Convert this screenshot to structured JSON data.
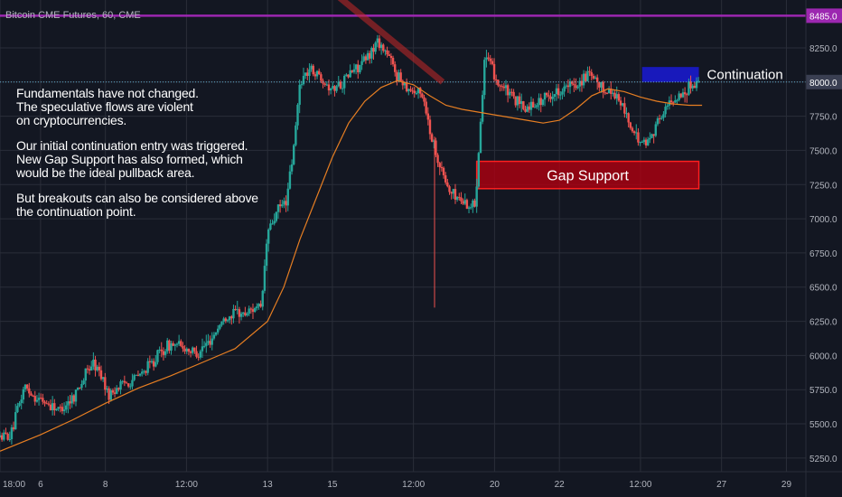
{
  "header": {
    "symbol_title": "Bitcoin CME Futures, 60, CME"
  },
  "commentary": {
    "p1_line1": "Fundamentals have not changed.",
    "p1_line2": "The speculative flows are violent",
    "p1_line3": "on cryptocurrencies.",
    "p2_line1": "Our initial continuation entry was triggered.",
    "p2_line2": "New Gap Support has also formed, which",
    "p2_line3": "would be the ideal pullback area.",
    "p3_line1": "But breakouts can also be considered above",
    "p3_line2": "the continuation point."
  },
  "colors": {
    "background": "#131722",
    "grid": "#2a2e39",
    "candle_up": "#26a69a",
    "candle_down": "#ef5350",
    "moving_average": "#e67e22",
    "resistance_line": "#9c27b0",
    "dotted_level": "#5fa8c8",
    "gap_zone": "#b00010",
    "continuation_zone": "#1a1acc",
    "trend_line": "#c62828"
  },
  "chart_data": {
    "type": "candlestick",
    "symbol": "Bitcoin CME Futures",
    "interval": "60",
    "exchange": "CME",
    "price_axis": {
      "ticks": [
        5250,
        5500,
        5750,
        6000,
        6250,
        6500,
        6750,
        7000,
        7250,
        7500,
        7750,
        8000,
        8250
      ],
      "range": [
        5150,
        8600
      ]
    },
    "time_axis": {
      "range_days": [
        4.75,
        29.6
      ],
      "ticks": [
        {
          "t": 4.75,
          "label": "18:00"
        },
        {
          "t": 6,
          "label": "6"
        },
        {
          "t": 8,
          "label": "8"
        },
        {
          "t": 10.5,
          "label": "12:00"
        },
        {
          "t": 13,
          "label": "13"
        },
        {
          "t": 15,
          "label": "15"
        },
        {
          "t": 17.5,
          "label": "12:00"
        },
        {
          "t": 20,
          "label": "20"
        },
        {
          "t": 22,
          "label": "22"
        },
        {
          "t": 24.5,
          "label": "12:00"
        },
        {
          "t": 27,
          "label": "27"
        },
        {
          "t": 29,
          "label": "29"
        }
      ]
    },
    "price_path": [
      [
        4.75,
        5400
      ],
      [
        5.1,
        5420
      ],
      [
        5.5,
        5780
      ],
      [
        5.8,
        5700
      ],
      [
        6.2,
        5650
      ],
      [
        6.6,
        5600
      ],
      [
        7.0,
        5700
      ],
      [
        7.3,
        5820
      ],
      [
        7.6,
        5950
      ],
      [
        7.9,
        5850
      ],
      [
        8.1,
        5700
      ],
      [
        8.4,
        5780
      ],
      [
        8.8,
        5820
      ],
      [
        9.2,
        5880
      ],
      [
        9.6,
        6000
      ],
      [
        10.0,
        6080
      ],
      [
        10.4,
        6060
      ],
      [
        10.8,
        6020
      ],
      [
        11.2,
        6100
      ],
      [
        11.6,
        6250
      ],
      [
        12.0,
        6320
      ],
      [
        12.3,
        6300
      ],
      [
        12.6,
        6360
      ],
      [
        12.8,
        6330
      ],
      [
        13.0,
        6900
      ],
      [
        13.3,
        7050
      ],
      [
        13.6,
        7150
      ],
      [
        13.8,
        7500
      ],
      [
        14.0,
        8000
      ],
      [
        14.3,
        8100
      ],
      [
        14.6,
        8050
      ],
      [
        15.0,
        7950
      ],
      [
        15.3,
        8000
      ],
      [
        15.6,
        8080
      ],
      [
        16.0,
        8150
      ],
      [
        16.4,
        8300
      ],
      [
        16.7,
        8200
      ],
      [
        17.0,
        8050
      ],
      [
        17.4,
        7950
      ],
      [
        17.8,
        7900
      ],
      [
        18.0,
        7650
      ],
      [
        18.3,
        7400
      ],
      [
        18.6,
        7200
      ],
      [
        18.9,
        7150
      ],
      [
        19.2,
        7100
      ],
      [
        19.4,
        7100
      ],
      [
        19.7,
        8200
      ],
      [
        20.1,
        8000
      ],
      [
        20.5,
        7900
      ],
      [
        20.9,
        7800
      ],
      [
        21.3,
        7850
      ],
      [
        21.7,
        7900
      ],
      [
        22.1,
        7950
      ],
      [
        22.5,
        7980
      ],
      [
        22.9,
        8050
      ],
      [
        23.3,
        7950
      ],
      [
        23.7,
        7920
      ],
      [
        24.0,
        7800
      ],
      [
        24.3,
        7600
      ],
      [
        24.7,
        7550
      ],
      [
        25.0,
        7700
      ],
      [
        25.4,
        7850
      ],
      [
        25.8,
        7920
      ],
      [
        26.1,
        7980
      ],
      [
        26.3,
        8020
      ]
    ],
    "moving_average": [
      [
        4.75,
        5300
      ],
      [
        6.0,
        5420
      ],
      [
        7.0,
        5530
      ],
      [
        8.0,
        5650
      ],
      [
        9.0,
        5760
      ],
      [
        10.0,
        5850
      ],
      [
        11.0,
        5950
      ],
      [
        12.0,
        6050
      ],
      [
        13.0,
        6250
      ],
      [
        13.5,
        6500
      ],
      [
        14.0,
        6850
      ],
      [
        14.5,
        7150
      ],
      [
        15.0,
        7450
      ],
      [
        15.5,
        7700
      ],
      [
        16.0,
        7860
      ],
      [
        16.5,
        7960
      ],
      [
        17.0,
        8010
      ],
      [
        17.5,
        7980
      ],
      [
        18.0,
        7900
      ],
      [
        18.5,
        7830
      ],
      [
        19.0,
        7800
      ],
      [
        20.0,
        7760
      ],
      [
        20.5,
        7740
      ],
      [
        21.0,
        7720
      ],
      [
        21.5,
        7700
      ],
      [
        22.0,
        7720
      ],
      [
        22.5,
        7800
      ],
      [
        23.0,
        7900
      ],
      [
        23.5,
        7950
      ],
      [
        24.0,
        7930
      ],
      [
        24.5,
        7890
      ],
      [
        25.0,
        7860
      ],
      [
        25.5,
        7840
      ],
      [
        26.0,
        7830
      ],
      [
        26.4,
        7830
      ]
    ],
    "levels": [
      {
        "name": "resistance",
        "price": 8485,
        "label": "8485.0"
      },
      {
        "name": "continuation-level",
        "price": 8000,
        "label": "8000.0"
      }
    ],
    "zones": [
      {
        "name": "Gap Support",
        "label": "Gap Support",
        "t0": 19.45,
        "t1": 26.3,
        "p0": 7220,
        "p1": 7420
      },
      {
        "name": "Continuation",
        "label": "",
        "t0": 24.55,
        "t1": 26.3,
        "p0": 8000,
        "p1": 8110
      }
    ],
    "annotations": [
      {
        "text": "Continuation",
        "t": 26.55,
        "p": 8055
      }
    ],
    "trend_line": [
      [
        14.8,
        8700
      ],
      [
        18.4,
        8000
      ]
    ]
  }
}
